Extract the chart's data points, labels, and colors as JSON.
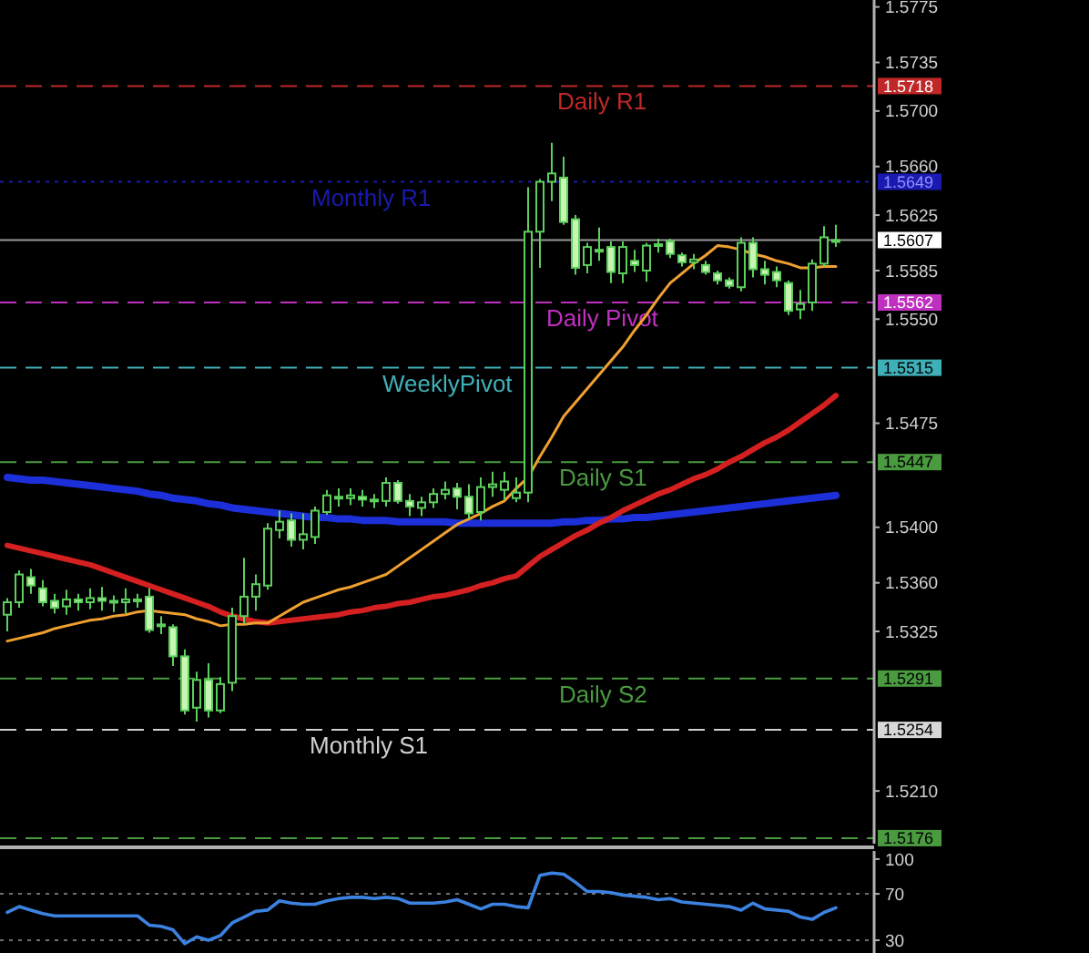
{
  "chart_data": [
    {
      "type": "candlestick",
      "color": "#5ccf5c",
      "categories": [
        null,
        null,
        null,
        null,
        null,
        null,
        null,
        null,
        null,
        null,
        null,
        null,
        null,
        null,
        null,
        null,
        null,
        null,
        null,
        null,
        null,
        null,
        null,
        null,
        null,
        null,
        null,
        null,
        null,
        null,
        null,
        null,
        null,
        null,
        null,
        null,
        null,
        null,
        null,
        null,
        null,
        null,
        null,
        null,
        null,
        null,
        null,
        null,
        null,
        null,
        null,
        null,
        null,
        null,
        null,
        null,
        null,
        null,
        null,
        null,
        null,
        null,
        null,
        null,
        null,
        null,
        null,
        null,
        null,
        null,
        null
      ],
      "ohlc": [
        [
          1.5337,
          1.5349,
          1.5325,
          1.5346
        ],
        [
          1.5346,
          1.5369,
          1.5342,
          1.5366
        ],
        [
          1.5364,
          1.537,
          1.5352,
          1.5358
        ],
        [
          1.5356,
          1.5362,
          1.5343,
          1.5346
        ],
        [
          1.5347,
          1.5352,
          1.5338,
          1.5342
        ],
        [
          1.5343,
          1.5355,
          1.5337,
          1.5348
        ],
        [
          1.5348,
          1.5352,
          1.534,
          1.5346
        ],
        [
          1.5346,
          1.5356,
          1.5341,
          1.5349
        ],
        [
          1.5349,
          1.5357,
          1.534,
          1.5347
        ],
        [
          1.5347,
          1.5351,
          1.5339,
          1.5346
        ],
        [
          1.5346,
          1.5356,
          1.5338,
          1.5348
        ],
        [
          1.5348,
          1.5352,
          1.5342,
          1.5347
        ],
        [
          1.535,
          1.5356,
          1.5324,
          1.5326
        ],
        [
          1.533,
          1.5336,
          1.5323,
          1.5329
        ],
        [
          1.5328,
          1.533,
          1.53,
          1.5307
        ],
        [
          1.5307,
          1.5312,
          1.5265,
          1.5268
        ],
        [
          1.527,
          1.5296,
          1.526,
          1.529
        ],
        [
          1.529,
          1.5302,
          1.5263,
          1.5268
        ],
        [
          1.5268,
          1.5292,
          1.5266,
          1.5287
        ],
        [
          1.5288,
          1.5342,
          1.5282,
          1.5336
        ],
        [
          1.5336,
          1.5378,
          1.533,
          1.535
        ],
        [
          1.535,
          1.5366,
          1.534,
          1.5359
        ],
        [
          1.5358,
          1.5403,
          1.5355,
          1.5399
        ],
        [
          1.5398,
          1.5412,
          1.5392,
          1.5404
        ],
        [
          1.5405,
          1.541,
          1.5386,
          1.5391
        ],
        [
          1.5391,
          1.541,
          1.5384,
          1.5395
        ],
        [
          1.5393,
          1.5415,
          1.5388,
          1.5412
        ],
        [
          1.5411,
          1.5427,
          1.5409,
          1.5423
        ],
        [
          1.5422,
          1.5428,
          1.5415,
          1.5421
        ],
        [
          1.5421,
          1.5428,
          1.5416,
          1.5423
        ],
        [
          1.5422,
          1.5427,
          1.5415,
          1.542
        ],
        [
          1.542,
          1.5424,
          1.5414,
          1.5419
        ],
        [
          1.5419,
          1.5436,
          1.5415,
          1.5432
        ],
        [
          1.5432,
          1.5434,
          1.5417,
          1.5419
        ],
        [
          1.5419,
          1.5424,
          1.5408,
          1.5415
        ],
        [
          1.5414,
          1.5422,
          1.5408,
          1.5418
        ],
        [
          1.5418,
          1.5428,
          1.5414,
          1.5424
        ],
        [
          1.5424,
          1.5433,
          1.542,
          1.5427
        ],
        [
          1.5428,
          1.5432,
          1.5413,
          1.5422
        ],
        [
          1.5422,
          1.5431,
          1.5406,
          1.541
        ],
        [
          1.5411,
          1.5436,
          1.5405,
          1.5429
        ],
        [
          1.5429,
          1.544,
          1.5422,
          1.5431
        ],
        [
          1.5427,
          1.544,
          1.542,
          1.5433
        ],
        [
          1.5421,
          1.5436,
          1.5418,
          1.5425
        ],
        [
          1.5425,
          1.5645,
          1.5418,
          1.5613
        ],
        [
          1.5613,
          1.5651,
          1.5587,
          1.5649
        ],
        [
          1.5649,
          1.5677,
          1.5635,
          1.5655
        ],
        [
          1.5652,
          1.5667,
          1.5618,
          1.562
        ],
        [
          1.5622,
          1.5625,
          1.5582,
          1.5587
        ],
        [
          1.5589,
          1.5605,
          1.5583,
          1.5602
        ],
        [
          1.5599,
          1.5616,
          1.5592,
          1.56
        ],
        [
          1.5602,
          1.5606,
          1.5576,
          1.5584
        ],
        [
          1.5583,
          1.5606,
          1.5576,
          1.5602
        ],
        [
          1.5592,
          1.56,
          1.5584,
          1.5589
        ],
        [
          1.5585,
          1.5605,
          1.5577,
          1.5603
        ],
        [
          1.5603,
          1.5608,
          1.5598,
          1.5604
        ],
        [
          1.5606,
          1.5608,
          1.5594,
          1.5597
        ],
        [
          1.5596,
          1.5598,
          1.5588,
          1.5591
        ],
        [
          1.5591,
          1.5597,
          1.5586,
          1.5593
        ],
        [
          1.5589,
          1.5592,
          1.5582,
          1.5584
        ],
        [
          1.5583,
          1.5585,
          1.5575,
          1.5578
        ],
        [
          1.5578,
          1.558,
          1.5572,
          1.5574
        ],
        [
          1.5573,
          1.5609,
          1.557,
          1.5605
        ],
        [
          1.5605,
          1.5609,
          1.558,
          1.5586
        ],
        [
          1.5586,
          1.5592,
          1.5575,
          1.5582
        ],
        [
          1.5584,
          1.5588,
          1.5573,
          1.5578
        ],
        [
          1.5576,
          1.5578,
          1.5553,
          1.5556
        ],
        [
          1.5557,
          1.5571,
          1.555,
          1.5561
        ],
        [
          1.5562,
          1.5593,
          1.5556,
          1.559
        ],
        [
          1.559,
          1.5617,
          1.5588,
          1.5609
        ],
        [
          1.5606,
          1.5618,
          1.5602,
          1.5607
        ]
      ],
      "series": [
        {
          "type": "line",
          "color": "#1c2fd8",
          "values": [
            1.5436,
            1.5435,
            1.5434,
            1.5434,
            1.5433,
            1.5432,
            1.5431,
            1.543,
            1.5429,
            1.5428,
            1.5427,
            1.5426,
            1.5424,
            1.5423,
            1.5421,
            1.542,
            1.5419,
            1.5417,
            1.5416,
            1.5414,
            1.5413,
            1.5412,
            1.5411,
            1.541,
            1.5409,
            1.5408,
            1.5407,
            1.5407,
            1.5406,
            1.5406,
            1.5405,
            1.5405,
            1.5405,
            1.5404,
            1.5404,
            1.5404,
            1.5404,
            1.5404,
            1.5403,
            1.5403,
            1.5403,
            1.5403,
            1.5403,
            1.5403,
            1.5403,
            1.5403,
            1.5403,
            1.5404,
            1.5404,
            1.5405,
            1.5405,
            1.5406,
            1.5406,
            1.5407,
            1.5407,
            1.5408,
            1.5409,
            1.541,
            1.5411,
            1.5412,
            1.5413,
            1.5414,
            1.5415,
            1.5416,
            1.5417,
            1.5418,
            1.5419,
            1.542,
            1.5421,
            1.5422,
            1.5423
          ]
        },
        {
          "type": "line",
          "color": "#d42020",
          "values": [
            1.5387,
            1.5385,
            1.5383,
            1.5381,
            1.5379,
            1.5377,
            1.5375,
            1.5373,
            1.537,
            1.5367,
            1.5364,
            1.5361,
            1.5358,
            1.5355,
            1.5352,
            1.5349,
            1.5346,
            1.5343,
            1.5339,
            1.5336,
            1.5334,
            1.5332,
            1.5331,
            1.5332,
            1.5333,
            1.5334,
            1.5335,
            1.5336,
            1.5337,
            1.5339,
            1.534,
            1.5342,
            1.5343,
            1.5345,
            1.5346,
            1.5348,
            1.535,
            1.5351,
            1.5353,
            1.5355,
            1.5358,
            1.536,
            1.5363,
            1.5365,
            1.5372,
            1.5379,
            1.5384,
            1.5389,
            1.5394,
            1.5398,
            1.5403,
            1.5407,
            1.5412,
            1.5416,
            1.542,
            1.5424,
            1.5427,
            1.5431,
            1.5435,
            1.5438,
            1.5442,
            1.5447,
            1.5451,
            1.5456,
            1.5461,
            1.5465,
            1.547,
            1.5476,
            1.5482,
            1.5488,
            1.5495
          ]
        },
        {
          "type": "line",
          "color": "#f0a030",
          "values": [
            1.5318,
            1.532,
            1.5322,
            1.5324,
            1.5327,
            1.5329,
            1.5331,
            1.5333,
            1.5334,
            1.5336,
            1.5337,
            1.5339,
            1.534,
            1.5339,
            1.5338,
            1.5337,
            1.5334,
            1.5332,
            1.5329,
            1.533,
            1.533,
            1.5331,
            1.5331,
            1.5336,
            1.5341,
            1.5346,
            1.5349,
            1.5352,
            1.5355,
            1.5357,
            1.536,
            1.5363,
            1.5366,
            1.5372,
            1.5378,
            1.5384,
            1.539,
            1.5396,
            1.5402,
            1.5406,
            1.541,
            1.5415,
            1.5419,
            1.5428,
            1.5436,
            1.5451,
            1.5465,
            1.548,
            1.549,
            1.55,
            1.551,
            1.552,
            1.553,
            1.5542,
            1.5553,
            1.5565,
            1.5576,
            1.5583,
            1.559,
            1.5596,
            1.5603,
            1.5602,
            1.56,
            1.5597,
            1.5595,
            1.5592,
            1.559,
            1.5587,
            1.5587,
            1.5588,
            1.5588
          ]
        }
      ],
      "annotations": [
        "1.5718",
        "1.5649",
        "1.5607",
        "1.5562",
        "1.5515",
        "1.5447",
        "1.5291",
        "1.5254",
        "1.5176"
      ],
      "ylim": [
        1.5172,
        1.578
      ],
      "yticks": [
        1.5775,
        1.5735,
        {
          "value": 1.57,
          "label": "1.5700"
        },
        {
          "value": 1.566,
          "label": "1.5660"
        },
        1.5625,
        1.5585,
        {
          "value": 1.555,
          "label": "1.5550"
        },
        1.5475,
        {
          "value": 1.54,
          "label": "1.5400"
        },
        {
          "value": 1.536,
          "label": "1.5360"
        },
        1.5325,
        {
          "value": 1.521,
          "label": "1.5210"
        }
      ],
      "ref_lines": [
        {
          "axis": "y",
          "value": 1.5718,
          "label": "Daily R1",
          "color": "#c02828",
          "line_style": "dashed"
        },
        {
          "axis": "y",
          "value": 1.5649,
          "label": "Monthly R1",
          "color": "#1a1ab0",
          "line_style": "dotted"
        },
        {
          "axis": "y",
          "value": 1.5607,
          "label": null,
          "color": "#9a9a9a",
          "line_style": "solid"
        },
        {
          "axis": "y",
          "value": 1.5562,
          "label": "Daily Pivot",
          "color": "#c030c0",
          "line_style": "dashed"
        },
        {
          "axis": "y",
          "value": 1.5515,
          "label": "WeeklyPivot",
          "color": "#40b0b8",
          "line_style": "dashed"
        },
        {
          "axis": "y",
          "value": 1.5447,
          "label": "Daily S1",
          "color": "#4a9a40",
          "line_style": "dashed"
        },
        {
          "axis": "y",
          "value": 1.5291,
          "label": "Daily S2",
          "color": "#4a9a40",
          "line_style": "dashed"
        },
        {
          "axis": "y",
          "value": 1.5254,
          "label": "Monthly S1",
          "color": "#d0d0d0",
          "line_style": "dashed"
        },
        {
          "axis": "y",
          "value": 1.5176,
          "label": null,
          "color": "#4a9a40",
          "line_style": "dashed"
        }
      ]
    },
    {
      "type": "line",
      "categories": [
        null,
        null,
        null,
        null,
        null,
        null,
        null,
        null,
        null,
        null,
        null,
        null,
        null,
        null,
        null,
        null,
        null,
        null,
        null,
        null,
        null,
        null,
        null,
        null,
        null,
        null,
        null,
        null,
        null,
        null,
        null,
        null,
        null,
        null,
        null,
        null,
        null,
        null,
        null,
        null,
        null,
        null,
        null,
        null,
        null,
        null,
        null,
        null,
        null,
        null,
        null,
        null,
        null,
        null,
        null,
        null,
        null,
        null,
        null,
        null,
        null,
        null,
        null,
        null,
        null,
        null,
        null,
        null,
        null,
        null,
        null
      ],
      "series": [
        {
          "color": "#3c82e0",
          "values": [
            54,
            59,
            56,
            53,
            51,
            51,
            51,
            51,
            51,
            51,
            51,
            51,
            43,
            42,
            39,
            27,
            33,
            30,
            34,
            45,
            50,
            55,
            56,
            64,
            62,
            61,
            61,
            64,
            66,
            67,
            67,
            66,
            67,
            66,
            62,
            62,
            62,
            63,
            65,
            61,
            57,
            61,
            61,
            59,
            58,
            86,
            88,
            87,
            80,
            72,
            72,
            71,
            69,
            68,
            67,
            65,
            66,
            63,
            62,
            61,
            60,
            59,
            56,
            62,
            57,
            56,
            55,
            50,
            48,
            54,
            58
          ]
        }
      ],
      "ylim": [
        19,
        107
      ],
      "yticks": [
        100,
        70,
        30
      ],
      "ref_lines": [
        {
          "axis": "y",
          "value": 70,
          "label": null,
          "color": "#707070",
          "line_style": "dotted"
        },
        {
          "axis": "y",
          "value": 30,
          "label": null,
          "color": "#707070",
          "line_style": "dotted"
        }
      ]
    }
  ]
}
